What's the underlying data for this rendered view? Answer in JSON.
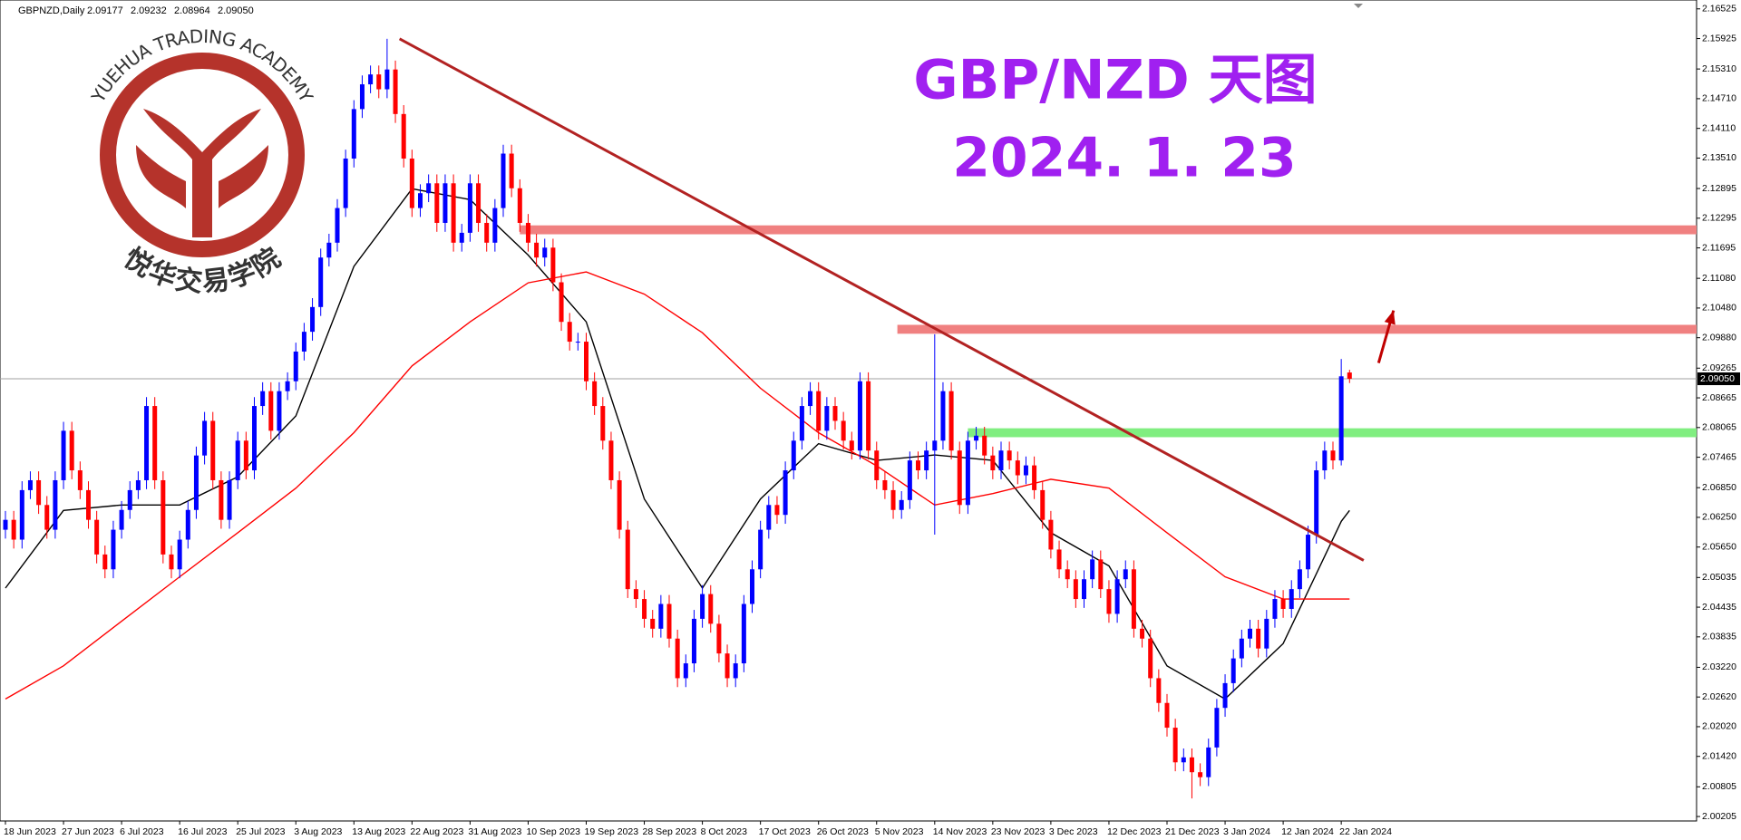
{
  "chart_data": {
    "type": "candlestick",
    "header": "GBPNZD,Daily",
    "header_values": [
      "2.09177",
      "2.09232",
      "2.08964",
      "2.09050"
    ],
    "title": "GBP/NZD 天图",
    "subtitle": "2024. 1. 23",
    "logo_text": "YUEHUA TRADING ACADEMY",
    "logo_text_cn": "悦华交易学院",
    "price_label": "2.09050",
    "up_color": "#0000ff",
    "down_color": "#ff0000",
    "ylim": [
      2.00115,
      2.16704
    ],
    "yticks": [
      2.16525,
      2.15925,
      {
        "value": 2.1531,
        "label": "2.15310"
      },
      {
        "value": 2.1471,
        "label": "2.14710"
      },
      {
        "value": 2.1411,
        "label": "2.14110"
      },
      {
        "value": 2.1351,
        "label": "2.13510"
      },
      2.12895,
      2.12295,
      2.11695,
      {
        "value": 2.1108,
        "label": "2.11080"
      },
      {
        "value": 2.1048,
        "label": "2.10480"
      },
      {
        "value": 2.0988,
        "label": "2.09880"
      },
      2.09265,
      2.08665,
      2.08065,
      2.07465,
      {
        "value": 2.0685,
        "label": "2.06850"
      },
      {
        "value": 2.0625,
        "label": "2.06250"
      },
      {
        "value": 2.0565,
        "label": "2.05650"
      },
      2.05035,
      2.04435,
      2.03835,
      {
        "value": 2.0322,
        "label": "2.03220"
      },
      {
        "value": 2.0262,
        "label": "2.02620"
      },
      {
        "value": 2.0202,
        "label": "2.02020"
      },
      {
        "value": 2.0142,
        "label": "2.01420"
      },
      2.00805,
      2.00205
    ],
    "categories": [
      "18 Jun 2023",
      null,
      null,
      null,
      null,
      null,
      null,
      "27 Jun 2023",
      null,
      null,
      null,
      null,
      null,
      null,
      "6 Jul 2023",
      null,
      null,
      null,
      null,
      null,
      null,
      "16 Jul 2023",
      null,
      null,
      null,
      null,
      null,
      null,
      "25 Jul 2023",
      null,
      null,
      null,
      null,
      null,
      null,
      "3 Aug 2023",
      null,
      null,
      null,
      null,
      null,
      null,
      "13 Aug 2023",
      null,
      null,
      null,
      null,
      null,
      null,
      "22 Aug 2023",
      null,
      null,
      null,
      null,
      null,
      null,
      "31 Aug 2023",
      null,
      null,
      null,
      null,
      null,
      null,
      "10 Sep 2023",
      null,
      null,
      null,
      null,
      null,
      null,
      "19 Sep 2023",
      null,
      null,
      null,
      null,
      null,
      null,
      "28 Sep 2023",
      null,
      null,
      null,
      null,
      null,
      null,
      "8 Oct 2023",
      null,
      null,
      null,
      null,
      null,
      null,
      "17 Oct 2023",
      null,
      null,
      null,
      null,
      null,
      null,
      "26 Oct 2023",
      null,
      null,
      null,
      null,
      null,
      null,
      "5 Nov 2023",
      null,
      null,
      null,
      null,
      null,
      null,
      "14 Nov 2023",
      null,
      null,
      null,
      null,
      null,
      null,
      "23 Nov 2023",
      null,
      null,
      null,
      null,
      null,
      null,
      "3 Dec 2023",
      null,
      null,
      null,
      null,
      null,
      null,
      "12 Dec 2023",
      null,
      null,
      null,
      null,
      null,
      null,
      "21 Dec 2023",
      null,
      null,
      null,
      null,
      null,
      null,
      "3 Jan 2024",
      null,
      null,
      null,
      null,
      null,
      null,
      "12 Jan 2024",
      null,
      null,
      null,
      null,
      null,
      null,
      "22 Jan 2024",
      null
    ],
    "open": [
      2.06,
      2.062,
      2.058,
      2.068,
      2.07,
      2.065,
      2.06,
      2.07,
      2.08,
      2.072,
      2.068,
      2.062,
      2.055,
      2.052,
      2.06,
      2.064,
      2.068,
      2.07,
      2.085,
      2.07,
      2.055,
      2.052,
      2.058,
      2.064,
      2.075,
      2.082,
      2.07,
      2.062,
      2.07,
      2.078,
      2.072,
      2.085,
      2.088,
      2.08,
      2.088,
      2.09,
      2.096,
      2.1,
      2.105,
      2.115,
      2.118,
      2.125,
      2.135,
      2.145,
      2.15,
      2.152,
      2.149,
      2.153,
      2.144,
      2.135,
      2.125,
      2.128,
      2.13,
      2.122,
      2.13,
      2.118,
      2.12,
      2.13,
      2.122,
      2.118,
      2.125,
      2.136,
      2.129,
      2.122,
      2.118,
      2.115,
      2.117,
      2.11,
      2.102,
      2.098,
      2.098,
      2.09,
      2.085,
      2.078,
      2.07,
      2.06,
      2.048,
      2.046,
      2.042,
      2.04,
      2.045,
      2.038,
      2.03,
      2.033,
      2.042,
      2.047,
      2.041,
      2.035,
      2.03,
      2.033,
      2.045,
      2.052,
      2.06,
      2.065,
      2.063,
      2.072,
      2.078,
      2.085,
      2.088,
      2.08,
      2.085,
      2.082,
      2.078,
      2.076,
      2.09,
      2.076,
      2.07,
      2.068,
      2.064,
      2.066,
      2.074,
      2.072,
      2.076,
      2.078,
      2.088,
      2.076,
      2.065,
      2.078,
      2.079,
      2.075,
      2.072,
      2.076,
      2.074,
      2.071,
      2.073,
      2.068,
      2.062,
      2.056,
      2.052,
      2.05,
      2.046,
      2.05,
      2.054,
      2.048,
      2.043,
      2.05,
      2.052,
      2.04,
      2.038,
      2.03,
      2.025,
      2.02,
      2.013,
      2.014,
      2.011,
      2.01,
      2.016,
      2.024,
      2.029,
      2.034,
      2.038,
      2.04,
      2.036,
      2.042,
      2.046,
      2.044,
      2.048,
      2.052,
      2.059,
      2.072,
      2.076,
      2.074,
      2.09177
    ],
    "high": [
      2.0638,
      2.0638,
      2.0698,
      2.0718,
      2.0718,
      2.0668,
      2.0718,
      2.0818,
      2.0818,
      2.0738,
      2.0698,
      2.0638,
      2.0568,
      2.0618,
      2.0658,
      2.0698,
      2.0718,
      2.0868,
      2.0868,
      2.0718,
      2.0568,
      2.0598,
      2.0658,
      2.0768,
      2.0838,
      2.0838,
      2.0718,
      2.0718,
      2.0798,
      2.0798,
      2.0868,
      2.0898,
      2.0898,
      2.0898,
      2.0918,
      2.0978,
      2.1018,
      2.1068,
      2.1168,
      2.1198,
      2.1268,
      2.1368,
      2.1468,
      2.1518,
      2.1538,
      2.1538,
      2.1592,
      2.1548,
      2.1458,
      2.1368,
      2.1298,
      2.1318,
      2.1318,
      2.1318,
      2.1318,
      2.1218,
      2.1318,
      2.1318,
      2.1238,
      2.1268,
      2.1378,
      2.1378,
      2.1308,
      2.1238,
      2.1198,
      2.1188,
      2.1188,
      2.1118,
      2.1038,
      2.0998,
      2.0998,
      2.0918,
      2.0868,
      2.0798,
      2.0718,
      2.0618,
      2.0498,
      2.0478,
      2.0438,
      2.0468,
      2.0468,
      2.0398,
      2.0348,
      2.0438,
      2.0488,
      2.0488,
      2.0428,
      2.0368,
      2.0348,
      2.0468,
      2.0538,
      2.0618,
      2.0668,
      2.0668,
      2.0738,
      2.0798,
      2.0868,
      2.0898,
      2.0898,
      2.0868,
      2.0868,
      2.0838,
      2.0798,
      2.0918,
      2.0918,
      2.0778,
      2.0718,
      2.0698,
      2.0678,
      2.0758,
      2.0758,
      2.0778,
      2.0995,
      2.0898,
      2.0898,
      2.0778,
      2.0798,
      2.0808,
      2.0808,
      2.0768,
      2.0778,
      2.0778,
      2.0758,
      2.0748,
      2.0748,
      2.0698,
      2.0638,
      2.0578,
      2.0538,
      2.0518,
      2.0518,
      2.0558,
      2.0558,
      2.0498,
      2.0518,
      2.0538,
      2.0538,
      2.0418,
      2.0398,
      2.0318,
      2.0268,
      2.0218,
      2.0158,
      2.0158,
      2.0128,
      2.0178,
      2.0258,
      2.0308,
      2.0358,
      2.0398,
      2.0418,
      2.0418,
      2.0438,
      2.0478,
      2.0478,
      2.0498,
      2.0538,
      2.0608,
      2.0738,
      2.0778,
      2.0778,
      2.0945,
      2.09232
    ],
    "low": [
      2.0582,
      2.0562,
      2.0562,
      2.0662,
      2.0632,
      2.0582,
      2.0582,
      2.0682,
      2.0702,
      2.0662,
      2.0602,
      2.0532,
      2.0502,
      2.0502,
      2.0582,
      2.0622,
      2.0662,
      2.0682,
      2.0682,
      2.0532,
      2.0502,
      2.0502,
      2.0562,
      2.0622,
      2.0732,
      2.0682,
      2.0602,
      2.0602,
      2.0682,
      2.0702,
      2.0702,
      2.0832,
      2.0782,
      2.0782,
      2.0862,
      2.0882,
      2.0942,
      2.0982,
      2.1032,
      2.1132,
      2.1162,
      2.1232,
      2.1332,
      2.1432,
      2.1482,
      2.1472,
      2.1472,
      2.1422,
      2.1332,
      2.1232,
      2.1232,
      2.1262,
      2.1202,
      2.1202,
      2.1162,
      2.1162,
      2.1182,
      2.1202,
      2.1162,
      2.1162,
      2.1232,
      2.1272,
      2.1202,
      2.1162,
      2.1132,
      2.1132,
      2.1082,
      2.1002,
      2.0962,
      2.0962,
      2.0882,
      2.0832,
      2.0762,
      2.0682,
      2.0582,
      2.0462,
      2.0442,
      2.0402,
      2.0382,
      2.0382,
      2.0362,
      2.0282,
      2.0282,
      2.0312,
      2.0402,
      2.0392,
      2.0332,
      2.0282,
      2.0282,
      2.0312,
      2.0432,
      2.0502,
      2.0582,
      2.0612,
      2.0612,
      2.0702,
      2.0762,
      2.0832,
      2.0782,
      2.0782,
      2.0802,
      2.0762,
      2.0742,
      2.0742,
      2.0742,
      2.0682,
      2.0662,
      2.0622,
      2.0622,
      2.0642,
      2.0702,
      2.0702,
      2.059,
      2.0762,
      2.0742,
      2.0632,
      2.0632,
      2.0762,
      2.0732,
      2.0702,
      2.0702,
      2.0722,
      2.0692,
      2.0692,
      2.0662,
      2.0602,
      2.0542,
      2.0502,
      2.0482,
      2.0442,
      2.0442,
      2.0482,
      2.0462,
      2.0412,
      2.0412,
      2.0482,
      2.0382,
      2.0362,
      2.0282,
      2.0232,
      2.0182,
      2.0112,
      2.0112,
      2.0057,
      2.0082,
      2.0082,
      2.0142,
      2.0222,
      2.0272,
      2.0322,
      2.0362,
      2.0342,
      2.0342,
      2.0402,
      2.0422,
      2.0422,
      2.0462,
      2.0502,
      2.0572,
      2.0702,
      2.0722,
      2.073,
      2.08964
    ],
    "close": [
      2.062,
      2.058,
      2.068,
      2.07,
      2.065,
      2.06,
      2.07,
      2.08,
      2.072,
      2.068,
      2.062,
      2.055,
      2.052,
      2.06,
      2.064,
      2.068,
      2.07,
      2.085,
      2.07,
      2.055,
      2.052,
      2.058,
      2.064,
      2.075,
      2.082,
      2.07,
      2.062,
      2.07,
      2.078,
      2.072,
      2.085,
      2.088,
      2.08,
      2.088,
      2.09,
      2.096,
      2.1,
      2.105,
      2.115,
      2.118,
      2.125,
      2.135,
      2.145,
      2.15,
      2.152,
      2.149,
      2.153,
      2.144,
      2.135,
      2.125,
      2.128,
      2.13,
      2.122,
      2.13,
      2.118,
      2.12,
      2.13,
      2.122,
      2.118,
      2.125,
      2.136,
      2.129,
      2.122,
      2.118,
      2.115,
      2.117,
      2.11,
      2.102,
      2.098,
      2.098,
      2.09,
      2.085,
      2.078,
      2.07,
      2.06,
      2.048,
      2.046,
      2.042,
      2.04,
      2.045,
      2.038,
      2.03,
      2.033,
      2.042,
      2.047,
      2.041,
      2.035,
      2.03,
      2.033,
      2.045,
      2.052,
      2.06,
      2.065,
      2.063,
      2.072,
      2.078,
      2.085,
      2.088,
      2.08,
      2.085,
      2.082,
      2.078,
      2.076,
      2.09,
      2.076,
      2.07,
      2.068,
      2.064,
      2.066,
      2.074,
      2.072,
      2.076,
      2.078,
      2.088,
      2.076,
      2.065,
      2.078,
      2.079,
      2.075,
      2.072,
      2.076,
      2.074,
      2.071,
      2.073,
      2.068,
      2.062,
      2.056,
      2.052,
      2.05,
      2.046,
      2.05,
      2.054,
      2.048,
      2.043,
      2.05,
      2.052,
      2.04,
      2.038,
      2.03,
      2.025,
      2.02,
      2.013,
      2.014,
      2.011,
      2.01,
      2.016,
      2.024,
      2.029,
      2.034,
      2.038,
      2.04,
      2.036,
      2.042,
      2.046,
      2.044,
      2.048,
      2.052,
      2.059,
      2.072,
      2.076,
      2.074,
      2.091,
      2.0905
    ],
    "series": [
      {
        "color": "#000000",
        "x": [
          0,
          7,
          14,
          21,
          28,
          35,
          42,
          49,
          56,
          63,
          70,
          77,
          84,
          91,
          98,
          105,
          112,
          119,
          126,
          133,
          140,
          147,
          154,
          161,
          162
        ],
        "values": [
          2.0482,
          2.0639,
          2.065,
          2.065,
          2.0707,
          2.083,
          2.1132,
          2.1289,
          2.1267,
          2.1155,
          2.102,
          2.0662,
          2.0482,
          2.0662,
          2.0774,
          2.074,
          2.0751,
          2.074,
          2.0594,
          2.0527,
          2.0325,
          2.0258,
          2.037,
          2.0617,
          2.0639
        ]
      },
      {
        "color": "#ff0000",
        "x": [
          0,
          7,
          14,
          21,
          28,
          35,
          42,
          49,
          56,
          63,
          70,
          77,
          84,
          91,
          98,
          105,
          112,
          119,
          126,
          133,
          140,
          147,
          154,
          161,
          162
        ],
        "values": [
          2.0258,
          2.0325,
          2.0415,
          2.0505,
          2.0594,
          2.0684,
          2.0796,
          2.0931,
          2.102,
          2.1099,
          2.1121,
          2.1076,
          2.0998,
          2.0886,
          2.0796,
          2.0729,
          2.065,
          2.0673,
          2.0702,
          2.0684,
          2.0594,
          2.0505,
          2.046,
          2.046,
          2.046
        ]
      }
    ],
    "drawings": {
      "trendline": {
        "x": [
          47.5,
          163.7
        ],
        "y": [
          2.1592,
          2.0538
        ],
        "color": "#b22222"
      },
      "zones": [
        {
          "x0": 62,
          "y": [
            2.1197,
            2.1215
          ],
          "color": "#f08080"
        },
        {
          "x0": 107.5,
          "y": [
            2.0996,
            2.1014
          ],
          "color": "#f08080"
        },
        {
          "x0": 116,
          "y": [
            2.0787,
            2.0805
          ],
          "color": "#80ee80"
        }
      ],
      "arrow": {
        "x": [
          165.5,
          167.3
        ],
        "y": [
          2.0937,
          2.1043
        ],
        "color": "#c00000"
      }
    }
  }
}
